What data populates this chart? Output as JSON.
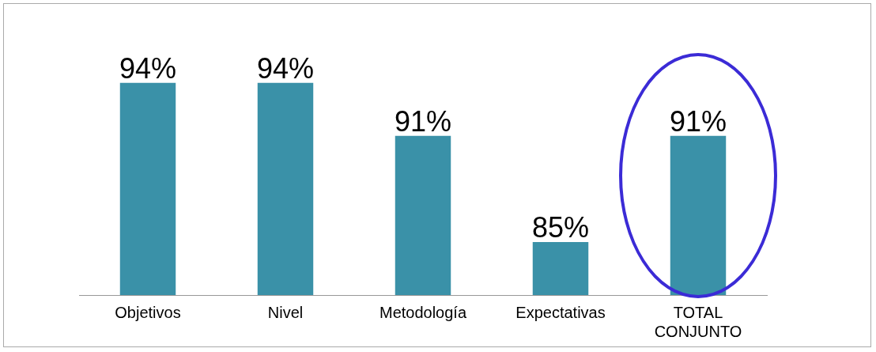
{
  "chart_data": {
    "type": "bar",
    "categories": [
      "Objetivos",
      "Nivel",
      "Metodología",
      "Expectativas",
      "TOTAL CONJUNTO"
    ],
    "values": [
      94,
      94,
      91,
      85,
      91
    ],
    "value_labels": [
      "94%",
      "94%",
      "91%",
      "85%",
      "91%"
    ],
    "color": "#3a91a8",
    "tick_labels": "x",
    "grid": false,
    "legend": false
  }
}
